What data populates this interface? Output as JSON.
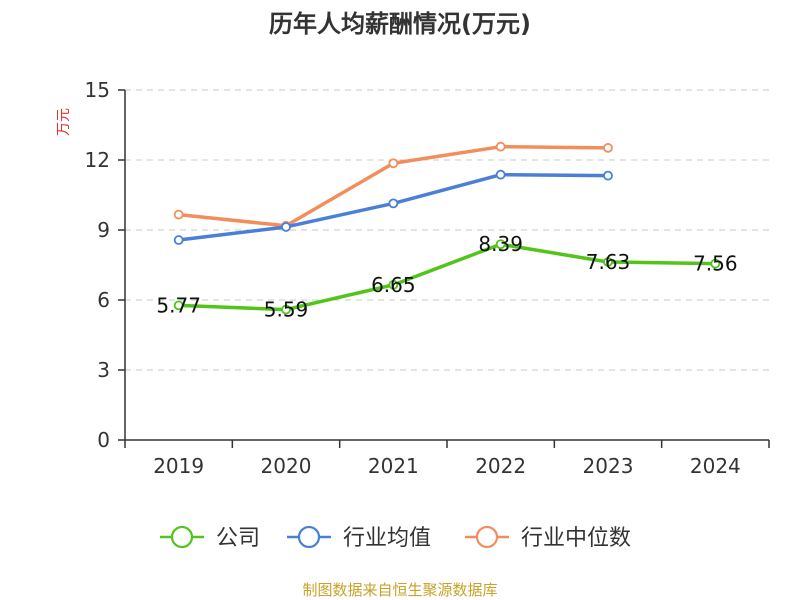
{
  "chart_data": {
    "type": "line",
    "title": "历年人均薪酬情况(万元)",
    "ylabel": "万元",
    "xlabel": "",
    "categories": [
      "2019",
      "2020",
      "2021",
      "2022",
      "2023",
      "2024"
    ],
    "ylim": [
      0,
      15
    ],
    "yticks": [
      0,
      3,
      6,
      9,
      12,
      15
    ],
    "grid": true,
    "legend_position": "bottom",
    "series": [
      {
        "name": "公司",
        "color": "#52c41a",
        "values": [
          5.77,
          5.59,
          6.65,
          8.39,
          7.63,
          7.56
        ],
        "show_labels": true
      },
      {
        "name": "行业均值",
        "color": "#4a7fd8",
        "values": [
          8.57,
          9.13,
          10.14,
          11.37,
          11.33,
          null
        ],
        "show_labels": false
      },
      {
        "name": "行业中位数",
        "color": "#f28e5b",
        "values": [
          9.66,
          9.18,
          11.86,
          12.57,
          12.52,
          null
        ],
        "show_labels": false
      }
    ],
    "data_labels": [
      "5.77",
      "5.59",
      "6.65",
      "8.39",
      "7.63",
      "7.56"
    ],
    "source": "制图数据来自恒生聚源数据库"
  },
  "colors": {
    "axis": "#333333",
    "grid": "#c8c8c8",
    "ylabel": "#e03030",
    "source": "#c9a227"
  }
}
